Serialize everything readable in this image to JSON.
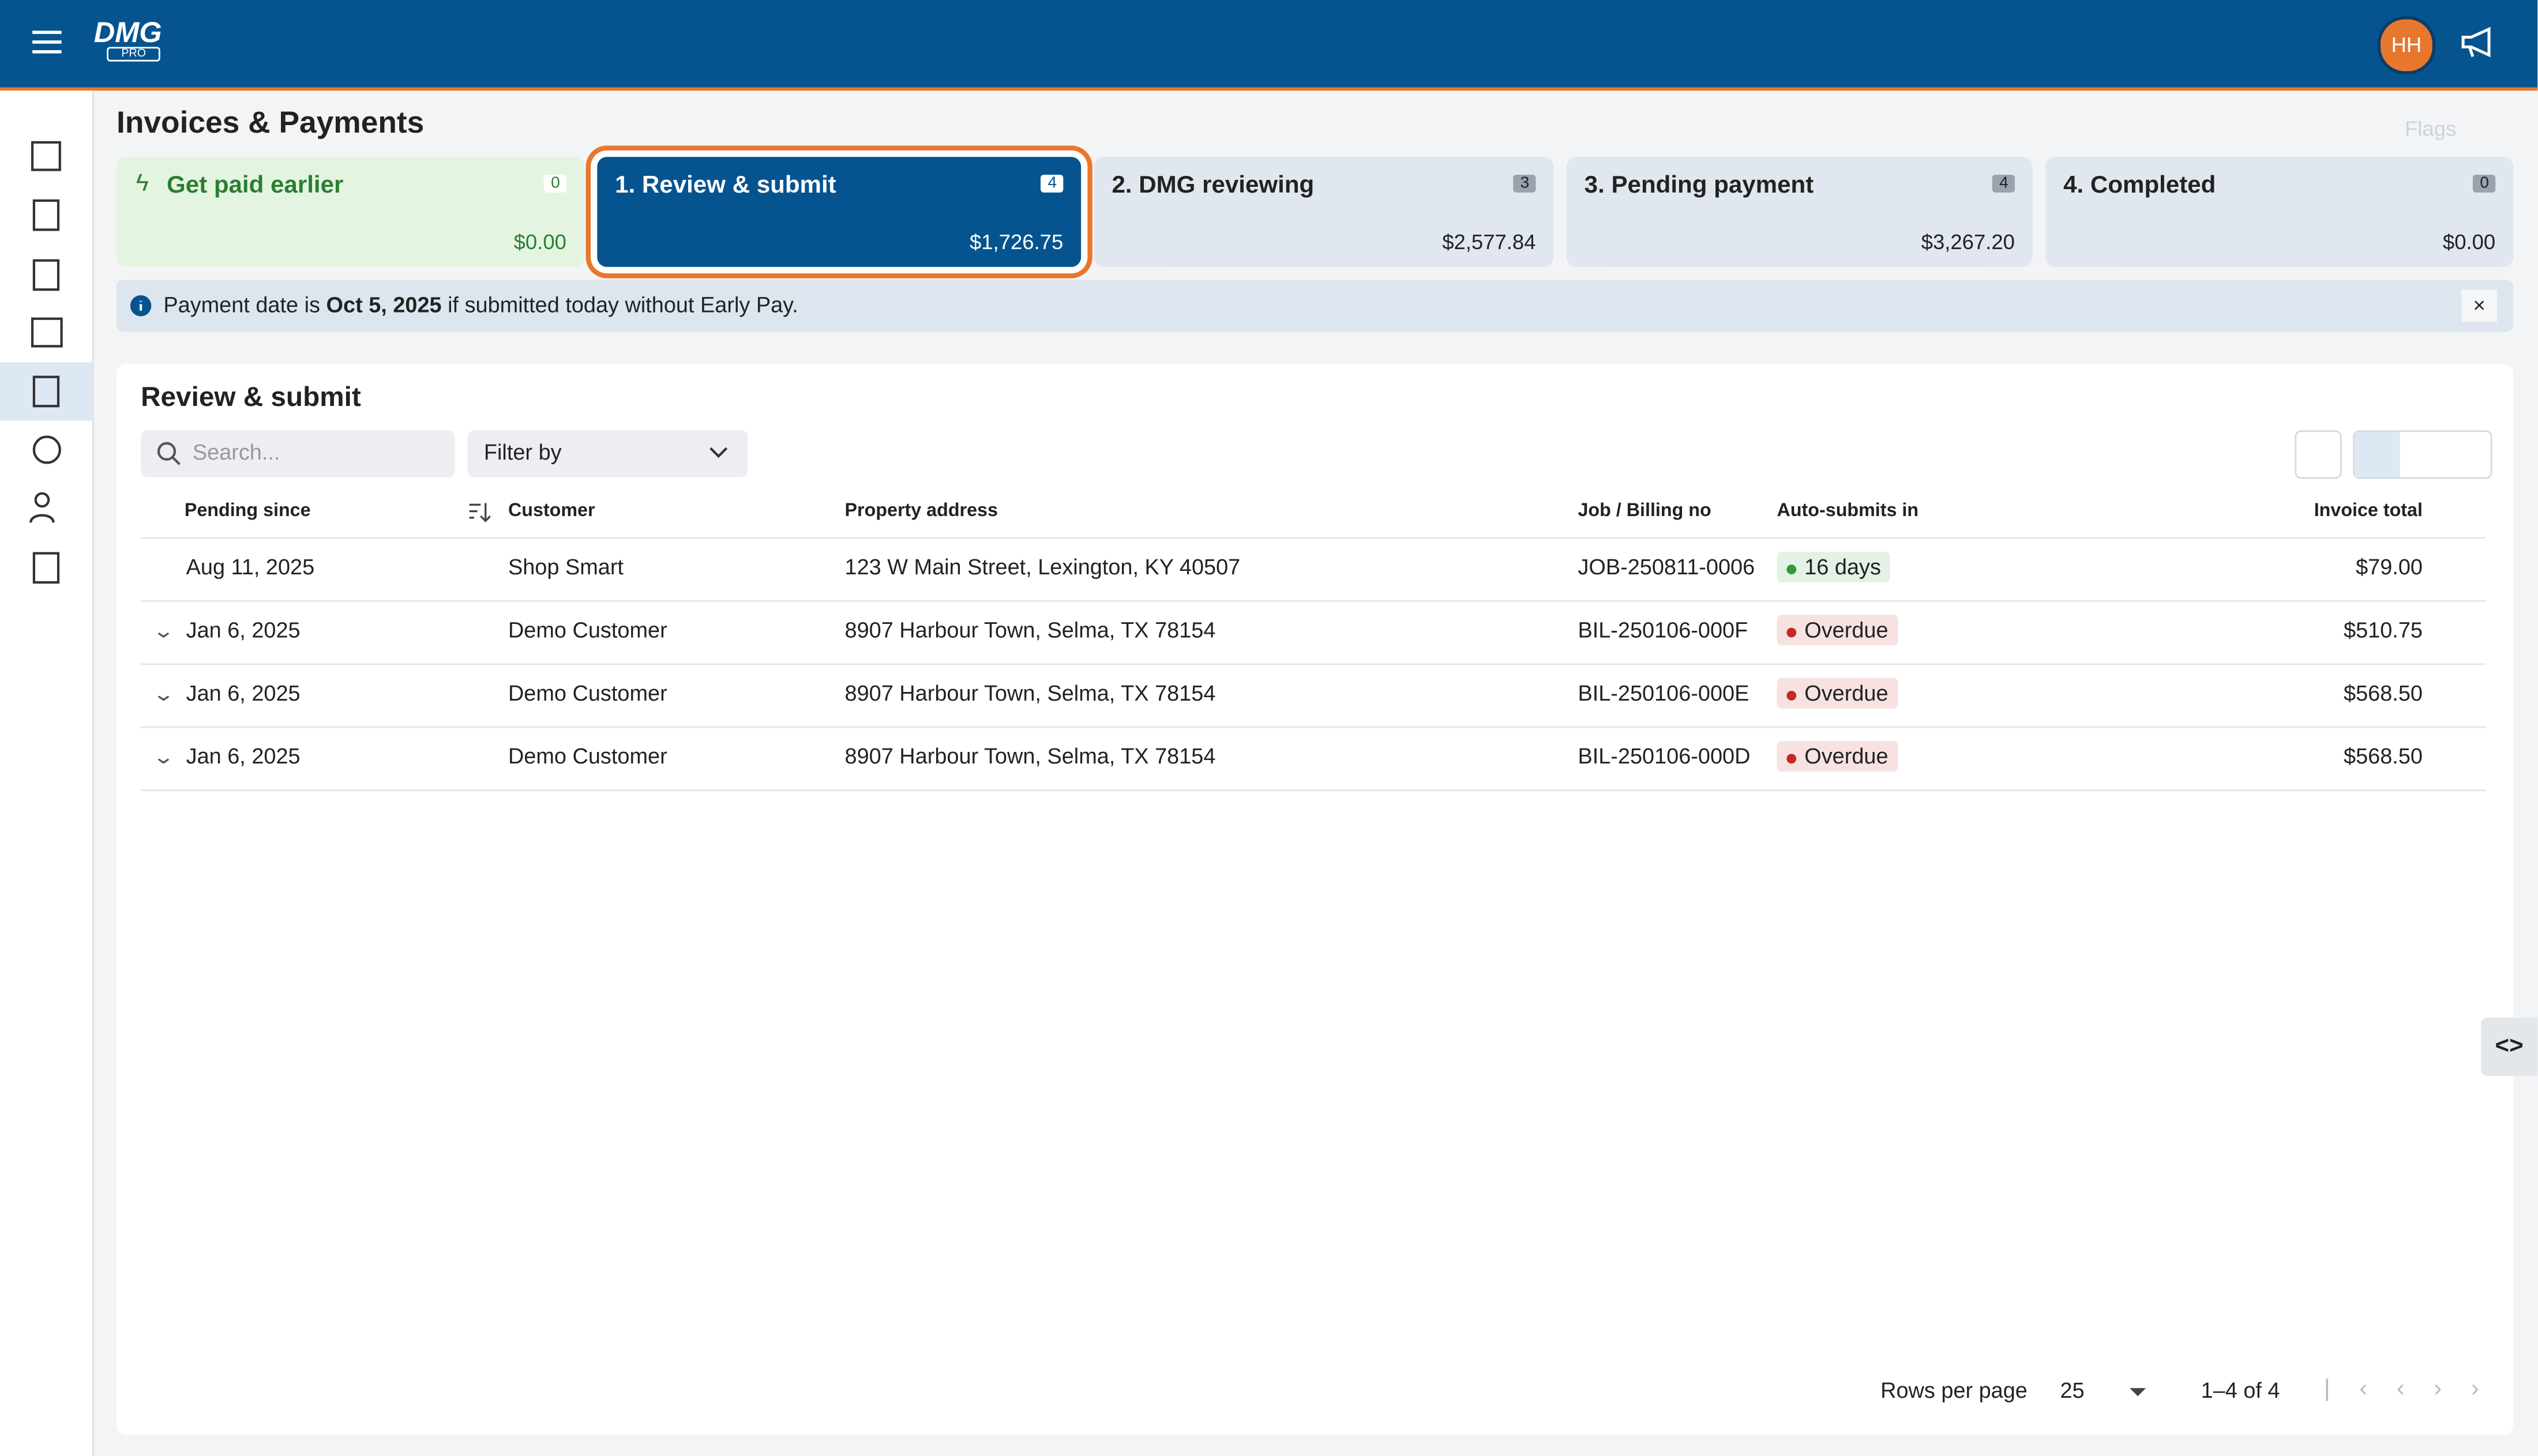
{
  "header": {
    "logo": "DMG",
    "logo_sub": "PRO",
    "avatar": "HH"
  },
  "page": {
    "title": "Invoices & Payments",
    "flags": "Flags"
  },
  "tabs": [
    {
      "label": "Get paid earlier",
      "count": "0",
      "amount": "$0.00"
    },
    {
      "label": "1. Review & submit",
      "count": "4",
      "amount": "$1,726.75"
    },
    {
      "label": "2. DMG reviewing",
      "count": "3",
      "amount": "$2,577.84"
    },
    {
      "label": "3. Pending payment",
      "count": "4",
      "amount": "$3,267.20"
    },
    {
      "label": "4. Completed",
      "count": "0",
      "amount": "$0.00"
    }
  ],
  "selected_tab": 1,
  "banner": {
    "text_before": "Payment date is",
    "date": "Oct 5, 2025",
    "text_after": "if submitted today without Early Pay."
  },
  "section": {
    "title": "Review & submit",
    "search_placeholder": "Search...",
    "filter": "Filter by"
  },
  "table": {
    "columns": [
      "Pending since",
      "Customer",
      "Property address",
      "Job / Billing no",
      "Auto-submits in",
      "Invoice total"
    ],
    "rows": [
      [
        "Aug 11, 2025",
        "Shop Smart",
        "123 W Main Street, Lexington, KY 40507",
        "JOB-250811-0006",
        "16 days",
        "$79.00"
      ],
      [
        "Jan 6, 2025",
        "Demo Customer",
        "8907 Harbour Town, Selma, TX 78154",
        "BIL-250106-000F",
        "Overdue",
        "$510.75"
      ],
      [
        "Jan 6, 2025",
        "Demo Customer",
        "8907 Harbour Town, Selma, TX 78154",
        "BIL-250106-000E",
        "Overdue",
        "$568.50"
      ],
      [
        "Jan 6, 2025",
        "Demo Customer",
        "8907 Harbour Town, Selma, TX 78154",
        "BIL-250106-000D",
        "Overdue",
        "$568.50"
      ]
    ],
    "status_colors": [
      "#2e9b3a",
      "#c62828",
      "#c62828",
      "#c62828"
    ],
    "expandable": [
      false,
      true,
      true,
      true
    ]
  },
  "pagination": {
    "rows_per_page_label": "Rows per page",
    "rows_per_page": "25",
    "range": "1–4 of 4"
  }
}
